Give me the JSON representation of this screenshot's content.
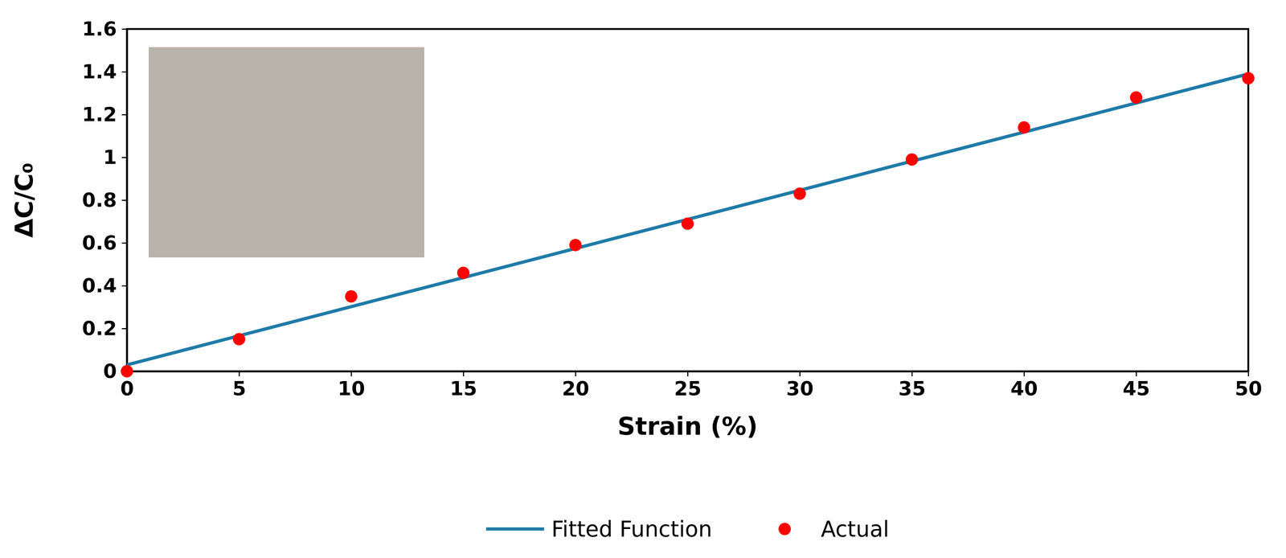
{
  "chart_data": {
    "type": "scatter",
    "x_label": "Strain (%)",
    "y_label": "ΔC/C₀",
    "xlim": [
      0,
      50
    ],
    "xticks": [
      0,
      5,
      10,
      15,
      20,
      25,
      30,
      35,
      40,
      45,
      50
    ],
    "ylim": [
      0,
      1.6
    ],
    "yticks": [
      0,
      0.2,
      0.4,
      0.6,
      0.8,
      1,
      1.2,
      1.4,
      1.6
    ],
    "grid": false,
    "legend": "bottom",
    "series": [
      {
        "name": "Fitted Function",
        "type": "line",
        "color": "#1f7ba8",
        "line_style": "solid",
        "x": [
          0,
          50
        ],
        "values": [
          0.03,
          1.39
        ]
      },
      {
        "name": "Actual",
        "type": "scatter",
        "color": "#ff0000",
        "marker": "circle",
        "x": [
          0,
          5,
          10,
          15,
          20,
          25,
          30,
          35,
          40,
          45,
          50
        ],
        "values": [
          0,
          0.15,
          0.35,
          0.46,
          0.59,
          0.69,
          0.83,
          0.99,
          1.14,
          1.28,
          1.37
        ]
      }
    ]
  }
}
